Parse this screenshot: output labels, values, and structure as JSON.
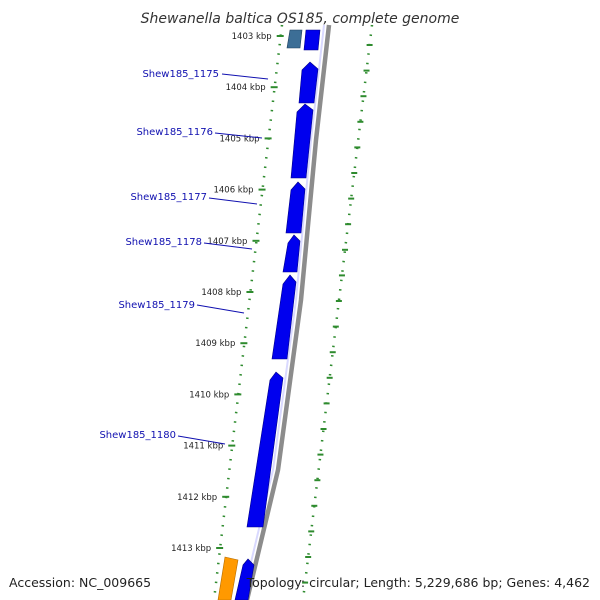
{
  "title": "Shewanella baltica OS185, complete genome",
  "accession_text": "Accession: NC_009665",
  "topology_text": "Topology: circular; Length: 5,229,686 bp; Genes: 4,462",
  "colors": {
    "gene_forward": "#0000ee",
    "gene_other": "#3c6e96",
    "gene_orange": "#ff9900",
    "backbone": "#888888",
    "ruler_dots": "#2e8b2e",
    "label": "#1010b0"
  },
  "ticks": [
    {
      "label": "1403 kbp"
    },
    {
      "label": "1404 kbp"
    },
    {
      "label": "1405 kbp"
    },
    {
      "label": "1406 kbp"
    },
    {
      "label": "1407 kbp"
    },
    {
      "label": "1408 kbp"
    },
    {
      "label": "1409 kbp"
    },
    {
      "label": "1410 kbp"
    },
    {
      "label": "1411 kbp"
    },
    {
      "label": "1412 kbp"
    },
    {
      "label": "1413 kbp"
    }
  ],
  "genes": [
    {
      "label": "Shew185_1175"
    },
    {
      "label": "Shew185_1176"
    },
    {
      "label": "Shew185_1177"
    },
    {
      "label": "Shew185_1178"
    },
    {
      "label": "Shew185_1179"
    },
    {
      "label": "Shew185_1180"
    }
  ]
}
